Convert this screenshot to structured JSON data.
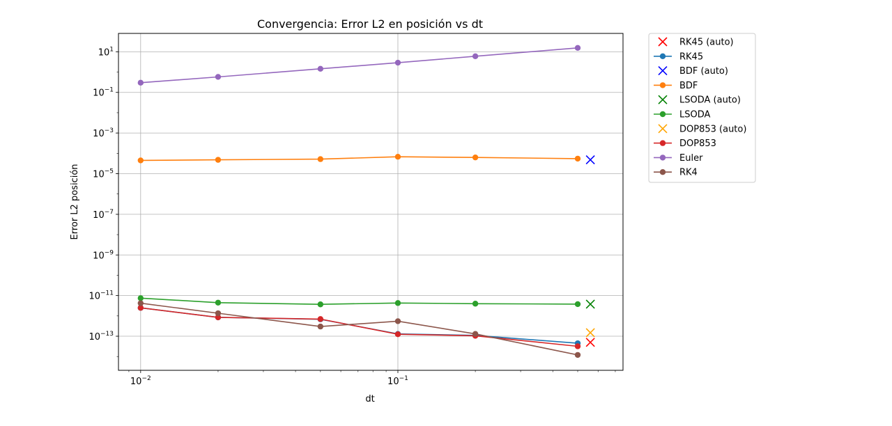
{
  "chart_data": {
    "type": "line",
    "title": "Convergencia: Error L2 en posición vs dt",
    "xlabel": "dt",
    "ylabel": "Error L2 posición",
    "xscale": "log",
    "yscale": "log",
    "xlim": [
      0.0082,
      0.75
    ],
    "ylim": [
      2.1e-15,
      80
    ],
    "grid": true,
    "legend_position": "outside-right",
    "x": [
      0.01,
      0.02,
      0.05,
      0.1,
      0.2,
      0.5
    ],
    "x_ticks": [
      {
        "value": 0.01,
        "base": "10",
        "exp": "−2"
      },
      {
        "value": 0.1,
        "base": "10",
        "exp": "−1"
      }
    ],
    "y_ticks": [
      {
        "value": 10,
        "base": "10",
        "exp": "1"
      },
      {
        "value": 0.1,
        "base": "10",
        "exp": "−1"
      },
      {
        "value": 0.001,
        "base": "10",
        "exp": "−3"
      },
      {
        "value": 1e-05,
        "base": "10",
        "exp": "−5"
      },
      {
        "value": 1e-07,
        "base": "10",
        "exp": "−7"
      },
      {
        "value": 1e-09,
        "base": "10",
        "exp": "−9"
      },
      {
        "value": 1e-11,
        "base": "10",
        "exp": "−11"
      },
      {
        "value": 1e-13,
        "base": "10",
        "exp": "−13"
      }
    ],
    "legend": [
      {
        "label": "RK45 (auto)",
        "marker": "x",
        "color": "#ff0000"
      },
      {
        "label": "RK45",
        "marker": "line",
        "color": "#1f77b4"
      },
      {
        "label": "BDF (auto)",
        "marker": "x",
        "color": "#0000ff"
      },
      {
        "label": "BDF",
        "marker": "line",
        "color": "#ff7f0e"
      },
      {
        "label": "LSODA (auto)",
        "marker": "x",
        "color": "#008000"
      },
      {
        "label": "LSODA",
        "marker": "line",
        "color": "#2ca02c"
      },
      {
        "label": "DOP853 (auto)",
        "marker": "x",
        "color": "#ffa500"
      },
      {
        "label": "DOP853",
        "marker": "line",
        "color": "#d62728"
      },
      {
        "label": "Euler",
        "marker": "line",
        "color": "#9467bd"
      },
      {
        "label": "RK4",
        "marker": "line",
        "color": "#8c564b"
      }
    ],
    "series": [
      {
        "name": "RK45",
        "color": "#1f77b4",
        "values": [
          2.5e-12,
          8.5e-13,
          6.8e-13,
          1.3e-13,
          1.1e-13,
          4.5e-14
        ]
      },
      {
        "name": "BDF",
        "color": "#ff7f0e",
        "values": [
          4.5e-05,
          4.8e-05,
          5.2e-05,
          6.8e-05,
          6.3e-05,
          5.5e-05
        ]
      },
      {
        "name": "LSODA",
        "color": "#2ca02c",
        "values": [
          7.5e-12,
          4.5e-12,
          3.7e-12,
          4.3e-12,
          4e-12,
          3.8e-12
        ]
      },
      {
        "name": "DOP853",
        "color": "#d62728",
        "values": [
          2.5e-12,
          8.5e-13,
          7e-13,
          1.25e-13,
          1.05e-13,
          3.2e-14
        ]
      },
      {
        "name": "Euler",
        "color": "#9467bd",
        "values": [
          0.3,
          0.58,
          1.45,
          2.9,
          6.0,
          15.5
        ]
      },
      {
        "name": "RK4",
        "color": "#8c564b",
        "values": [
          4.2e-12,
          1.35e-12,
          3e-13,
          5.5e-13,
          1.3e-13,
          1.2e-14
        ]
      }
    ],
    "auto_points": [
      {
        "name": "RK45 (auto)",
        "color": "#ff0000",
        "x": 0.56,
        "y": 5e-14
      },
      {
        "name": "BDF (auto)",
        "color": "#0000ff",
        "x": 0.56,
        "y": 4.8e-05
      },
      {
        "name": "LSODA (auto)",
        "color": "#008000",
        "x": 0.56,
        "y": 3.8e-12
      },
      {
        "name": "DOP853 (auto)",
        "color": "#ffa500",
        "x": 0.56,
        "y": 1.5e-13
      }
    ]
  }
}
